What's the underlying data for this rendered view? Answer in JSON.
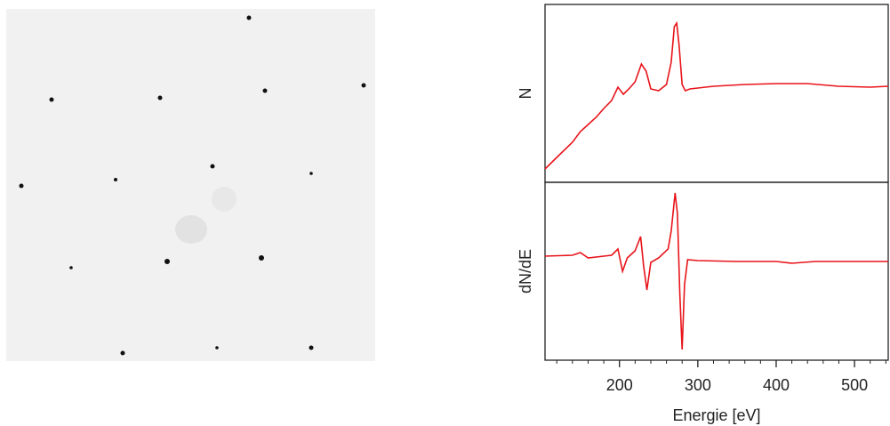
{
  "chart_data": [
    {
      "type": "line",
      "ylabel": "N",
      "xlim": [
        105,
        543
      ],
      "ylim": [
        0,
        1
      ],
      "series": [
        {
          "color": "#e8141a",
          "x": [
            105,
            120,
            140,
            150,
            160,
            170,
            180,
            190,
            198,
            205,
            212,
            220,
            228,
            234,
            240,
            250,
            260,
            266,
            270,
            273,
            276,
            280,
            284,
            290,
            320,
            360,
            400,
            440,
            480,
            520,
            543
          ],
          "values": [
            0.075,
            0.14,
            0.225,
            0.285,
            0.325,
            0.365,
            0.415,
            0.46,
            0.535,
            0.495,
            0.525,
            0.565,
            0.665,
            0.625,
            0.525,
            0.515,
            0.55,
            0.675,
            0.875,
            0.895,
            0.775,
            0.55,
            0.515,
            0.525,
            0.54,
            0.55,
            0.555,
            0.555,
            0.54,
            0.535,
            0.54
          ]
        }
      ]
    },
    {
      "type": "line",
      "ylabel": "dN/dE",
      "xlabel": "Energie [eV]",
      "xlim": [
        105,
        543
      ],
      "ylim": [
        0,
        1
      ],
      "xticks": [
        200,
        300,
        400,
        500
      ],
      "xminorticks": [
        120,
        140,
        160,
        180,
        220,
        240,
        260,
        280,
        320,
        340,
        360,
        380,
        420,
        440,
        460,
        480,
        520,
        540
      ],
      "series": [
        {
          "color": "#e8141a",
          "x": [
            105,
            140,
            150,
            160,
            180,
            190,
            198,
            204,
            210,
            220,
            227,
            231,
            235,
            240,
            250,
            262,
            266,
            271,
            274,
            277,
            280,
            283,
            287,
            300,
            350,
            400,
            420,
            450,
            500,
            543
          ],
          "values": [
            0.585,
            0.59,
            0.605,
            0.575,
            0.585,
            0.59,
            0.625,
            0.5,
            0.575,
            0.615,
            0.695,
            0.525,
            0.395,
            0.55,
            0.575,
            0.625,
            0.725,
            0.94,
            0.825,
            0.375,
            0.06,
            0.425,
            0.565,
            0.56,
            0.555,
            0.555,
            0.545,
            0.555,
            0.555,
            0.555
          ]
        }
      ]
    }
  ]
}
